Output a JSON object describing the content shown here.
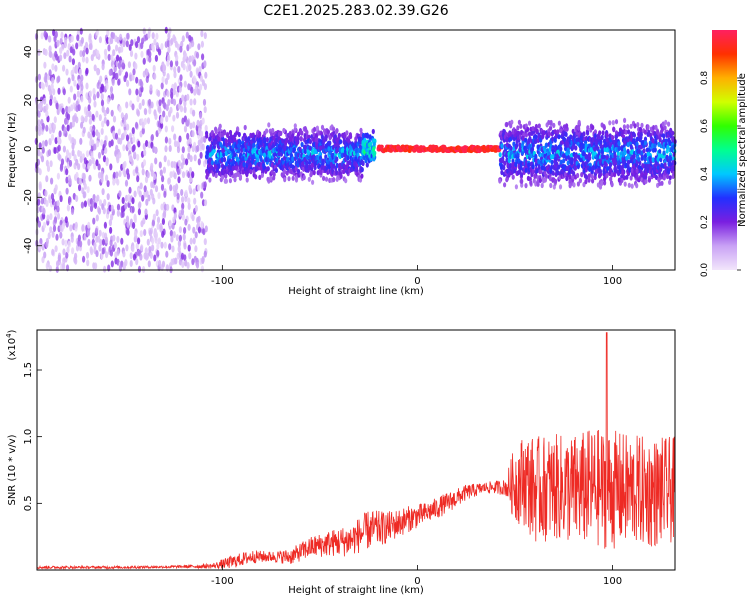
{
  "title": "C2E1.2025.283.02.39.G26",
  "chart_data": [
    {
      "type": "heatmap",
      "title": "C2E1.2025.283.02.39.G26",
      "xlabel": "Height of straight line (km)",
      "ylabel": "Frequency (Hz)",
      "xlim": [
        -195,
        132
      ],
      "ylim": [
        -50,
        49
      ],
      "xticks": [
        -100,
        0,
        100
      ],
      "xtick_labels": [
        "-100",
        "0",
        "100"
      ],
      "yticks": [
        -40,
        -20,
        0,
        20,
        40
      ],
      "ytick_labels": [
        "-40",
        "-20",
        "0",
        "20",
        "40"
      ],
      "colorbar": {
        "label": "Normalized spectral amplitude",
        "range": [
          0,
          1
        ],
        "ticks": [
          0.0,
          0.2,
          0.4,
          0.6,
          0.8
        ],
        "tick_labels": [
          "0.0",
          "0.2",
          "0.4",
          "0.6",
          "0.8"
        ],
        "colors": [
          "#f2e6fb",
          "#c9a2f5",
          "#7a1fe0",
          "#2230ff",
          "#00c8ff",
          "#00ff90",
          "#30ff00",
          "#d0ff00",
          "#ffb000",
          "#ff3000",
          "#ff2060"
        ]
      },
      "regions": [
        {
          "x": [
            -195,
            -108
          ],
          "freq_spread_hz": [
            -50,
            49
          ],
          "amplitude": [
            0.05,
            0.2
          ],
          "pattern": "sparse noise"
        },
        {
          "x": [
            -108,
            -28
          ],
          "freq_spread_hz": [
            -12,
            8
          ],
          "amplitude": [
            0.1,
            0.45
          ],
          "pattern": "band"
        },
        {
          "x": [
            -28,
            -22
          ],
          "freq_spread_hz": [
            -6,
            6
          ],
          "amplitude": [
            0.2,
            0.6
          ],
          "pattern": "narrowing band"
        },
        {
          "x": [
            -20,
            42
          ],
          "freq_spread_hz": [
            -1,
            1
          ],
          "amplitude": [
            0.9,
            1.0
          ],
          "pattern": "narrow line at 0 Hz"
        },
        {
          "x": [
            42,
            132
          ],
          "freq_spread_hz": [
            -14,
            10
          ],
          "amplitude": [
            0.1,
            0.45
          ],
          "pattern": "band"
        }
      ]
    },
    {
      "type": "line",
      "xlabel": "Height of straight line (km)",
      "ylabel": "SNR (10 * v/v)",
      "multiplier_label": "(x10",
      "multiplier_exponent": "4",
      "xlim": [
        -195,
        132
      ],
      "ylim": [
        0,
        1.8
      ],
      "xticks": [
        -100,
        0,
        100
      ],
      "xtick_labels": [
        "-100",
        "0",
        "100"
      ],
      "yticks": [
        0.5,
        1.0,
        1.5
      ],
      "ytick_labels": [
        "0.5",
        "1.0",
        "1.5"
      ],
      "color": "#ee2a24",
      "series": [
        {
          "name": "SNR",
          "x": [
            -195,
            -150,
            -120,
            -105,
            -95,
            -85,
            -75,
            -65,
            -55,
            -45,
            -35,
            -25,
            -15,
            -5,
            5,
            15,
            25,
            35,
            45,
            50,
            55,
            60,
            70,
            80,
            90,
            100,
            110,
            120,
            132
          ],
          "mean": [
            0.02,
            0.02,
            0.025,
            0.03,
            0.06,
            0.1,
            0.1,
            0.1,
            0.17,
            0.2,
            0.22,
            0.3,
            0.32,
            0.38,
            0.43,
            0.5,
            0.58,
            0.62,
            0.62,
            0.65,
            0.68,
            0.6,
            0.62,
            0.6,
            0.62,
            0.6,
            0.6,
            0.58,
            0.6
          ],
          "amp": [
            0.01,
            0.01,
            0.01,
            0.02,
            0.05,
            0.05,
            0.04,
            0.06,
            0.08,
            0.1,
            0.12,
            0.15,
            0.12,
            0.1,
            0.08,
            0.08,
            0.06,
            0.04,
            0.06,
            0.3,
            0.35,
            0.4,
            0.4,
            0.42,
            0.45,
            0.45,
            0.42,
            0.42,
            0.4
          ]
        }
      ],
      "peak": {
        "x": 97,
        "y": 1.78
      }
    }
  ]
}
